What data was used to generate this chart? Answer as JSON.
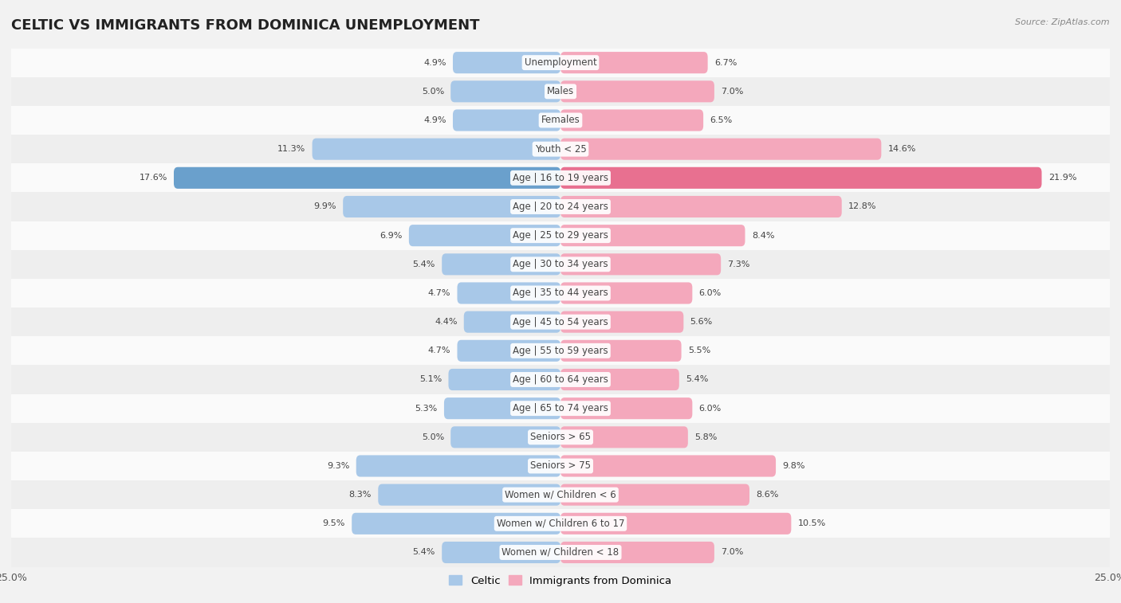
{
  "title": "CELTIC VS IMMIGRANTS FROM DOMINICA UNEMPLOYMENT",
  "source": "Source: ZipAtlas.com",
  "categories": [
    "Unemployment",
    "Males",
    "Females",
    "Youth < 25",
    "Age | 16 to 19 years",
    "Age | 20 to 24 years",
    "Age | 25 to 29 years",
    "Age | 30 to 34 years",
    "Age | 35 to 44 years",
    "Age | 45 to 54 years",
    "Age | 55 to 59 years",
    "Age | 60 to 64 years",
    "Age | 65 to 74 years",
    "Seniors > 65",
    "Seniors > 75",
    "Women w/ Children < 6",
    "Women w/ Children 6 to 17",
    "Women w/ Children < 18"
  ],
  "celtic_values": [
    4.9,
    5.0,
    4.9,
    11.3,
    17.6,
    9.9,
    6.9,
    5.4,
    4.7,
    4.4,
    4.7,
    5.1,
    5.3,
    5.0,
    9.3,
    8.3,
    9.5,
    5.4
  ],
  "dominica_values": [
    6.7,
    7.0,
    6.5,
    14.6,
    21.9,
    12.8,
    8.4,
    7.3,
    6.0,
    5.6,
    5.5,
    5.4,
    6.0,
    5.8,
    9.8,
    8.6,
    10.5,
    7.0
  ],
  "celtic_color": "#a8c8e8",
  "dominica_color": "#f4a8bc",
  "celtic_highlight_color": "#6aa0cc",
  "dominica_highlight_color": "#e87090",
  "background_color": "#f2f2f2",
  "row_color_light": "#fafafa",
  "row_color_dark": "#eeeeee",
  "highlight_row": 4,
  "axis_max": 25.0,
  "legend_celtic": "Celtic",
  "legend_dominica": "Immigrants from Dominica",
  "title_fontsize": 13,
  "label_fontsize": 8.5,
  "value_fontsize": 8
}
